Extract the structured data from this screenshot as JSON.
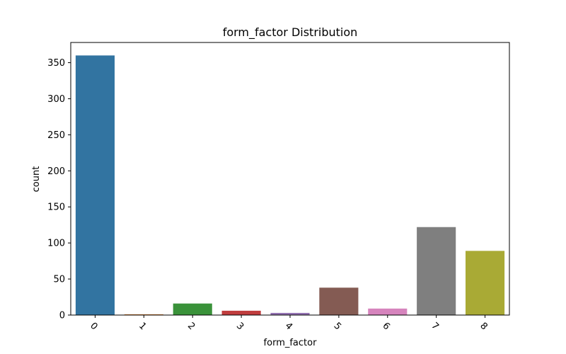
{
  "chart_data": {
    "type": "bar",
    "title": "form_factor Distribution",
    "xlabel": "form_factor",
    "ylabel": "count",
    "categories": [
      "0",
      "1",
      "2",
      "3",
      "4",
      "5",
      "6",
      "7",
      "8"
    ],
    "values": [
      360,
      1,
      16,
      6,
      3,
      38,
      9,
      122,
      89
    ],
    "colors": [
      "#3274a1",
      "#e1812c",
      "#3a923a",
      "#c03d3e",
      "#9372b2",
      "#845b53",
      "#d684bd",
      "#7f7f7f",
      "#a9aa35"
    ],
    "ylim": [
      0,
      378
    ],
    "yticks": [
      0,
      50,
      100,
      150,
      200,
      250,
      300,
      350
    ],
    "grid": false,
    "legend": "none"
  }
}
